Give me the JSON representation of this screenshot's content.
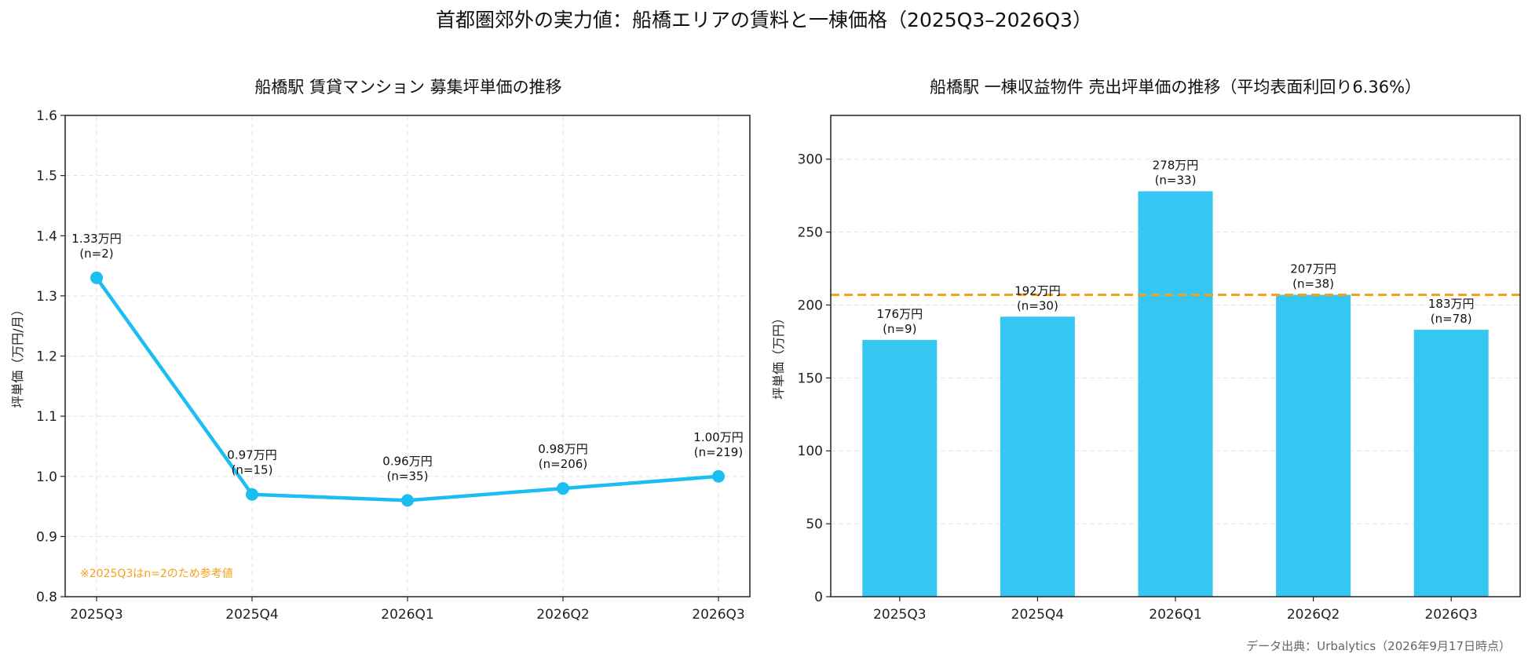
{
  "figure": {
    "suptitle": "首都圏郊外の実力値：船橋エリアの賃料と一棟価格（2025Q3–2026Q3）",
    "source": "データ出典：Urbalytics（2026年9月17日時点）"
  },
  "chart_data": [
    {
      "type": "line",
      "title": "船橋駅 賃貸マンション 募集坪単価の推移",
      "xlabel": "",
      "ylabel": "坪単価（万円/月）",
      "categories": [
        "2025Q3",
        "2025Q4",
        "2026Q1",
        "2026Q2",
        "2026Q3"
      ],
      "values": [
        1.33,
        0.97,
        0.96,
        0.98,
        1.0
      ],
      "value_labels": [
        "1.33万円",
        "0.97万円",
        "0.96万円",
        "0.98万円",
        "1.00万円"
      ],
      "n_labels": [
        "(n=2)",
        "(n=15)",
        "(n=35)",
        "(n=206)",
        "(n=219)"
      ],
      "ylim": [
        0.8,
        1.6
      ],
      "yticks": [
        "0.8",
        "0.9",
        "1.0",
        "1.1",
        "1.2",
        "1.3",
        "1.4",
        "1.5",
        "1.6"
      ],
      "grid": true,
      "color": "#1BBEF0",
      "annotation": "※2025Q3はn=2のため参考値",
      "annotation_color": "#F5A11C"
    },
    {
      "type": "bar",
      "title": "船橋駅 一棟収益物件 売出坪単価の推移（平均表面利回り6.36%）",
      "xlabel": "",
      "ylabel": "坪単価（万円）",
      "categories": [
        "2025Q3",
        "2025Q4",
        "2026Q1",
        "2026Q2",
        "2026Q3"
      ],
      "values": [
        176,
        192,
        278,
        207,
        183
      ],
      "value_labels": [
        "176万円",
        "192万円",
        "278万円",
        "207万円",
        "183万円"
      ],
      "n_labels": [
        "(n=9)",
        "(n=30)",
        "(n=33)",
        "(n=38)",
        "(n=78)"
      ],
      "ylim": [
        0,
        330
      ],
      "yticks": [
        "0",
        "50",
        "100",
        "150",
        "200",
        "250",
        "300"
      ],
      "grid": true,
      "color": "#36C6F2",
      "reference_line": 207,
      "reference_color": "#F5A11C"
    }
  ]
}
